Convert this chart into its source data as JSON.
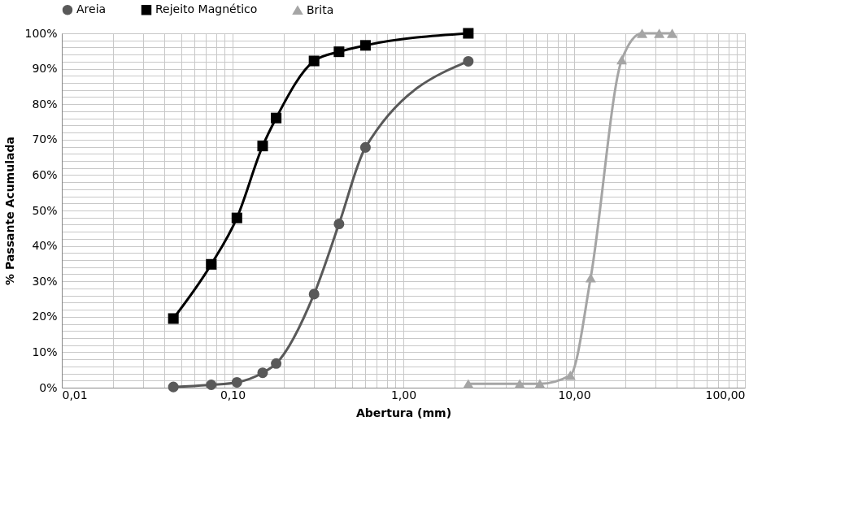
{
  "chart_data": {
    "type": "line",
    "xlabel": "Abertura (mm)",
    "ylabel": "% Passante Acumulada",
    "log": "x",
    "grid": true,
    "legend": "top",
    "line_style": "solid",
    "xlim": [
      0.01,
      100
    ],
    "ylim": [
      0,
      100
    ],
    "xticks": [
      {
        "value": 0.01,
        "label": "0,01"
      },
      {
        "value": 0.02,
        "label": null
      },
      {
        "value": 0.03,
        "label": null
      },
      {
        "value": 0.04,
        "label": null
      },
      {
        "value": 0.05,
        "label": null
      },
      {
        "value": 0.06,
        "label": null
      },
      {
        "value": 0.07,
        "label": null
      },
      {
        "value": 0.08,
        "label": null
      },
      {
        "value": 0.09,
        "label": null
      },
      {
        "value": 0.1,
        "label": "0,10"
      },
      {
        "value": 0.2,
        "label": null
      },
      {
        "value": 0.3,
        "label": null
      },
      {
        "value": 0.4,
        "label": null
      },
      {
        "value": 0.5,
        "label": null
      },
      {
        "value": 0.6,
        "label": null
      },
      {
        "value": 0.7,
        "label": null
      },
      {
        "value": 0.8,
        "label": null
      },
      {
        "value": 0.9,
        "label": null
      },
      {
        "value": 1,
        "label": "1,00"
      },
      {
        "value": 2,
        "label": null
      },
      {
        "value": 3,
        "label": null
      },
      {
        "value": 4,
        "label": null
      },
      {
        "value": 5,
        "label": null
      },
      {
        "value": 6,
        "label": null
      },
      {
        "value": 7,
        "label": null
      },
      {
        "value": 8,
        "label": null
      },
      {
        "value": 9,
        "label": null
      },
      {
        "value": 10,
        "label": "10,00"
      },
      {
        "value": 20,
        "label": null
      },
      {
        "value": 30,
        "label": null
      },
      {
        "value": 40,
        "label": null
      },
      {
        "value": 50,
        "label": null
      },
      {
        "value": 60,
        "label": null
      },
      {
        "value": 70,
        "label": null
      },
      {
        "value": 80,
        "label": null
      },
      {
        "value": 90,
        "label": null
      },
      {
        "value": 100,
        "label": "100,00"
      }
    ],
    "yticks": [
      {
        "value": 0,
        "label": "0%"
      },
      {
        "value": 2,
        "label": null
      },
      {
        "value": 4,
        "label": null
      },
      {
        "value": 6,
        "label": null
      },
      {
        "value": 8,
        "label": null
      },
      {
        "value": 10,
        "label": "10%"
      },
      {
        "value": 12,
        "label": null
      },
      {
        "value": 14,
        "label": null
      },
      {
        "value": 16,
        "label": null
      },
      {
        "value": 18,
        "label": null
      },
      {
        "value": 20,
        "label": "20%"
      },
      {
        "value": 22,
        "label": null
      },
      {
        "value": 24,
        "label": null
      },
      {
        "value": 26,
        "label": null
      },
      {
        "value": 28,
        "label": null
      },
      {
        "value": 30,
        "label": "30%"
      },
      {
        "value": 32,
        "label": null
      },
      {
        "value": 34,
        "label": null
      },
      {
        "value": 36,
        "label": null
      },
      {
        "value": 38,
        "label": null
      },
      {
        "value": 40,
        "label": "40%"
      },
      {
        "value": 42,
        "label": null
      },
      {
        "value": 44,
        "label": null
      },
      {
        "value": 46,
        "label": null
      },
      {
        "value": 48,
        "label": null
      },
      {
        "value": 50,
        "label": "50%"
      },
      {
        "value": 52,
        "label": null
      },
      {
        "value": 54,
        "label": null
      },
      {
        "value": 56,
        "label": null
      },
      {
        "value": 58,
        "label": null
      },
      {
        "value": 60,
        "label": "60%"
      },
      {
        "value": 62,
        "label": null
      },
      {
        "value": 64,
        "label": null
      },
      {
        "value": 66,
        "label": null
      },
      {
        "value": 68,
        "label": null
      },
      {
        "value": 70,
        "label": "70%"
      },
      {
        "value": 72,
        "label": null
      },
      {
        "value": 74,
        "label": null
      },
      {
        "value": 76,
        "label": null
      },
      {
        "value": 78,
        "label": null
      },
      {
        "value": 80,
        "label": "80%"
      },
      {
        "value": 82,
        "label": null
      },
      {
        "value": 84,
        "label": null
      },
      {
        "value": 86,
        "label": null
      },
      {
        "value": 88,
        "label": null
      },
      {
        "value": 90,
        "label": "90%"
      },
      {
        "value": 92,
        "label": null
      },
      {
        "value": 94,
        "label": null
      },
      {
        "value": 96,
        "label": null
      },
      {
        "value": 98,
        "label": null
      },
      {
        "value": 100,
        "label": "100%"
      }
    ],
    "series": [
      {
        "name": "Areia",
        "color": "#595959",
        "marker": "circle",
        "x": [
          0.045,
          0.075,
          0.106,
          0.15,
          0.18,
          0.3,
          0.42,
          0.6,
          2.4
        ],
        "values": [
          0.2,
          0.8,
          1.5,
          4.2,
          6.8,
          26.4,
          46.2,
          67.8,
          92.1
        ]
      },
      {
        "name": "Rejeito Magnético",
        "color": "#000000",
        "marker": "square",
        "x": [
          0.045,
          0.075,
          0.106,
          0.15,
          0.18,
          0.3,
          0.42,
          0.6,
          2.4
        ],
        "values": [
          19.5,
          34.8,
          47.9,
          68.2,
          76.1,
          92.2,
          94.8,
          96.6,
          100
        ]
      },
      {
        "name": "Brita",
        "color": "#a5a5a5",
        "marker": "triangle",
        "x": [
          2.4,
          4.8,
          6.3,
          9.5,
          12.5,
          19,
          25,
          31.5,
          37.5
        ],
        "values": [
          1.1,
          1.1,
          1.1,
          3.5,
          31,
          92.5,
          100,
          100,
          100
        ]
      }
    ]
  }
}
